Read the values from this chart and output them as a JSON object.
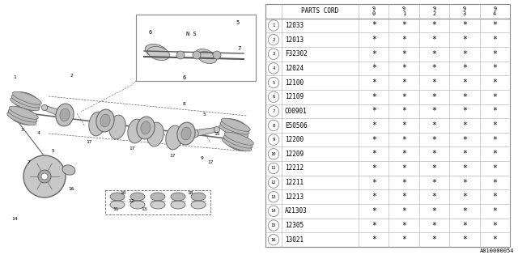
{
  "bg_color": "#ffffff",
  "col_header": "PARTS CORD",
  "year_cols": [
    "9\n0",
    "9\n1",
    "9\n2",
    "9\n3",
    "9\n4"
  ],
  "rows": [
    {
      "num": 1,
      "code": "12033"
    },
    {
      "num": 2,
      "code": "12013"
    },
    {
      "num": 3,
      "code": "F32302"
    },
    {
      "num": 4,
      "code": "12024"
    },
    {
      "num": 5,
      "code": "12100"
    },
    {
      "num": 6,
      "code": "12109"
    },
    {
      "num": 7,
      "code": "C00901"
    },
    {
      "num": 8,
      "code": "E50506"
    },
    {
      "num": 9,
      "code": "12200"
    },
    {
      "num": 10,
      "code": "12209"
    },
    {
      "num": 11,
      "code": "12212"
    },
    {
      "num": 12,
      "code": "12211"
    },
    {
      "num": 13,
      "code": "12213"
    },
    {
      "num": 14,
      "code": "A21303"
    },
    {
      "num": 15,
      "code": "12305"
    },
    {
      "num": 16,
      "code": "13021"
    }
  ],
  "footer_code": "A010000054",
  "table_line_color": "#aaaaaa",
  "text_color": "#000000",
  "diagram_line_color": "#666666",
  "diagram_fill_light": "#d8d8d8",
  "diagram_fill_mid": "#bbbbbb",
  "diagram_fill_dark": "#999999"
}
